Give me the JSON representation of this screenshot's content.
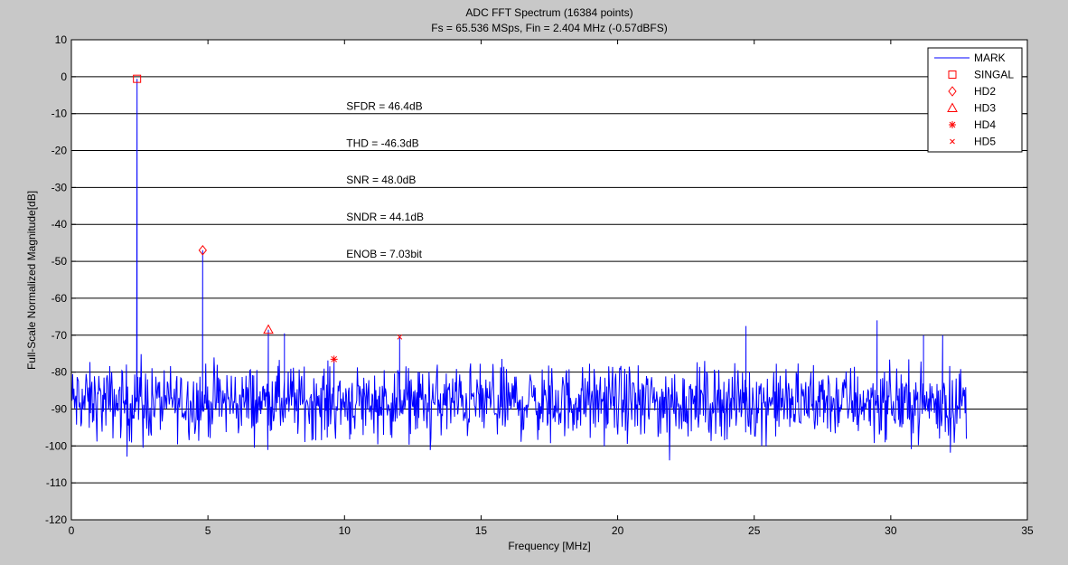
{
  "chart_data": {
    "type": "line",
    "title": [
      "ADC FFT Spectrum (16384 points)",
      "Fs = 65.536 MSps, Fin = 2.404 MHz (-0.57dBFS)"
    ],
    "xlabel": "Frequency [MHz]",
    "ylabel": "Full-Scale Normalized Magnitude[dB]",
    "xlim": [
      0,
      35
    ],
    "ylim": [
      -120,
      10
    ],
    "xticks": [
      0,
      5,
      10,
      15,
      20,
      25,
      30,
      35
    ],
    "yticks": [
      10,
      0,
      -10,
      -20,
      -30,
      -40,
      -50,
      -60,
      -70,
      -80,
      -90,
      -100,
      -110,
      -120
    ],
    "grid": "horizontal",
    "series_color": "#0000ff",
    "marker_color": "#ff0000",
    "noise": {
      "x_range": [
        0,
        32.768
      ],
      "mean_db": -88,
      "spread_db": 6,
      "points": 1400
    },
    "spurs": [
      {
        "x": 2.404,
        "y": -0.57
      },
      {
        "x": 4.808,
        "y": -47
      },
      {
        "x": 7.212,
        "y": -68.5
      },
      {
        "x": 7.8,
        "y": -69.5
      },
      {
        "x": 9.616,
        "y": -76.5
      },
      {
        "x": 12.02,
        "y": -70.5
      },
      {
        "x": 24.7,
        "y": -67.5
      },
      {
        "x": 29.5,
        "y": -66
      },
      {
        "x": 31.2,
        "y": -70
      },
      {
        "x": 31.9,
        "y": -70
      }
    ],
    "markers": [
      {
        "name": "SINGAL",
        "shape": "square",
        "x": 2.404,
        "y": -0.57
      },
      {
        "name": "HD2",
        "shape": "diamond",
        "x": 4.808,
        "y": -47
      },
      {
        "name": "HD3",
        "shape": "triangle",
        "x": 7.212,
        "y": -68.5
      },
      {
        "name": "HD4",
        "shape": "star",
        "x": 9.616,
        "y": -76.5
      },
      {
        "name": "HD5",
        "shape": "x",
        "x": 12.02,
        "y": -70.5
      }
    ],
    "legend": {
      "placement": "top-right",
      "entries": [
        "MARK",
        "SINGAL",
        "HD2",
        "HD3",
        "HD4",
        "HD5"
      ]
    },
    "annotations": [
      {
        "text": "SFDR = 46.4dB",
        "x": 10,
        "y": -8
      },
      {
        "text": "THD = -46.3dB",
        "x": 10,
        "y": -18
      },
      {
        "text": "SNR   = 48.0dB",
        "x": 10,
        "y": -28
      },
      {
        "text": "SNDR = 44.1dB",
        "x": 10,
        "y": -38
      },
      {
        "text": "ENOB = 7.03bit",
        "x": 10,
        "y": -48
      }
    ]
  }
}
